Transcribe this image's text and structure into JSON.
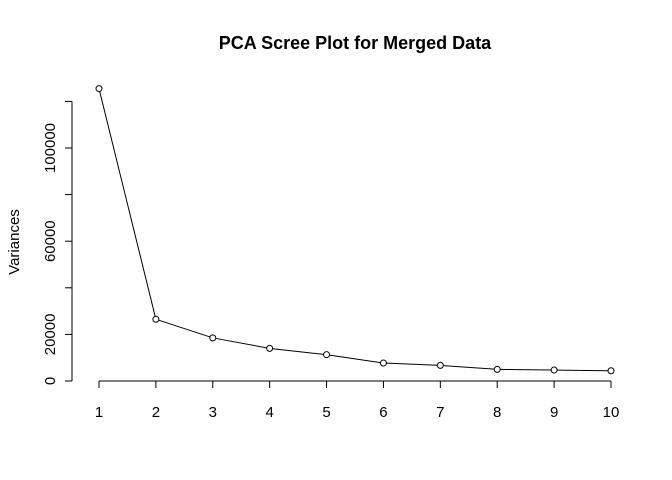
{
  "chart_data": {
    "type": "line",
    "title": "PCA Scree Plot for Merged Data",
    "xlabel": "",
    "ylabel": "Variances",
    "x": [
      1,
      2,
      3,
      4,
      5,
      6,
      7,
      8,
      9,
      10
    ],
    "values": [
      125500,
      26500,
      18500,
      14000,
      11300,
      7700,
      6700,
      5000,
      4700,
      4400
    ],
    "xlim": [
      1,
      10
    ],
    "ylim": [
      0,
      120000
    ],
    "x_ticks": [
      "1",
      "2",
      "3",
      "4",
      "5",
      "6",
      "7",
      "8",
      "9",
      "10"
    ],
    "y_ticks": [
      "0",
      "20000",
      "60000",
      "100000"
    ],
    "y_tick_values": [
      0,
      20000,
      60000,
      100000
    ],
    "y_minor_ticks": [
      40000,
      80000,
      120000
    ],
    "grid": false,
    "marker": "open-circle",
    "line_color": "#000000"
  }
}
